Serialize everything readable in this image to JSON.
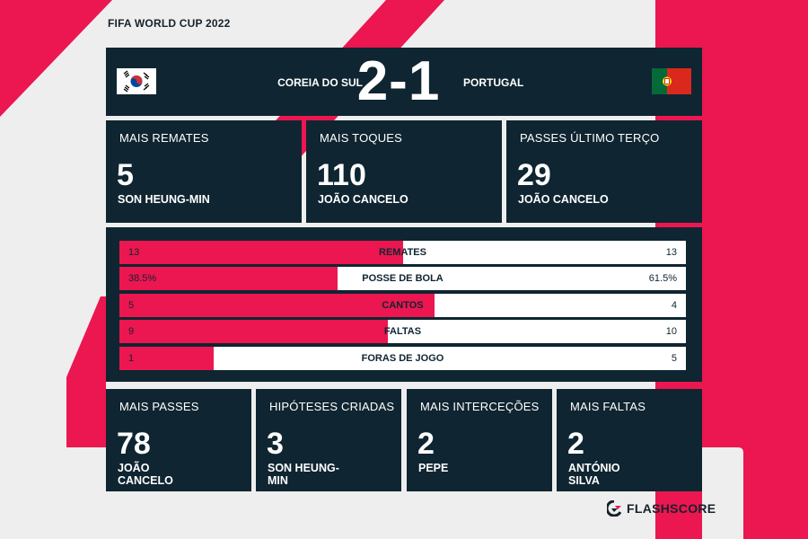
{
  "title": "FIFA WORLD CUP 2022",
  "match": {
    "home_team": "COREIA DO SUL",
    "away_team": "PORTUGAL",
    "score": "2-1"
  },
  "top_stats": [
    {
      "label": "MAIS REMATES",
      "value": "5",
      "player": "SON HEUNG-MIN"
    },
    {
      "label": "MAIS TOQUES",
      "value": "110",
      "player": "JOÃO CANCELO"
    },
    {
      "label": "PASSES ÚLTIMO TERÇO",
      "value": "29",
      "player": "JOÃO CANCELO"
    }
  ],
  "comparison": [
    {
      "label": "REMATES",
      "home": "13",
      "away": "13",
      "home_share": 0.5
    },
    {
      "label": "POSSE DE BOLA",
      "home": "38.5%",
      "away": "61.5%",
      "home_share": 0.385
    },
    {
      "label": "CANTOS",
      "home": "5",
      "away": "4",
      "home_share": 0.556
    },
    {
      "label": "FALTAS",
      "home": "9",
      "away": "10",
      "home_share": 0.474
    },
    {
      "label": "FORAS DE JOGO",
      "home": "1",
      "away": "5",
      "home_share": 0.167
    }
  ],
  "bottom_stats": [
    {
      "label": "MAIS PASSES",
      "value": "78",
      "player_line1": "JOÃO",
      "player_line2": "CANCELO"
    },
    {
      "label": "HIPÓTESES CRIADAS",
      "value": "3",
      "player_line1": "SON HEUNG-",
      "player_line2": "MIN"
    },
    {
      "label": "MAIS INTERCEÇÕES",
      "value": "2",
      "player_line1": "PEPE",
      "player_line2": ""
    },
    {
      "label": "MAIS FALTAS",
      "value": "2",
      "player_line1": "ANTÓNIO",
      "player_line2": "SILVA"
    }
  ],
  "brand": "FLASHSCORE",
  "colors": {
    "accent": "#ec1650",
    "panel": "#0f2531",
    "background": "#eeeeee"
  },
  "icons": {
    "home_flag": "south-korea-flag-icon",
    "away_flag": "portugal-flag-icon",
    "brand_logo": "flashscore-logo-icon"
  }
}
